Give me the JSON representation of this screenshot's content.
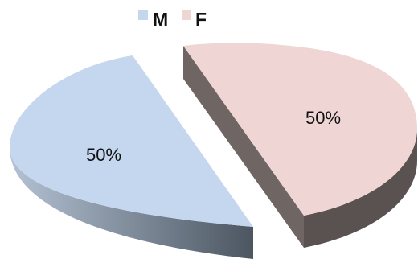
{
  "chart_data": {
    "type": "pie",
    "style": "3d-exploded",
    "legend_position": "top",
    "series": [
      {
        "name": "M",
        "value": 50,
        "label": "50%",
        "color": "#c5d7ee",
        "side_light": "#b3c2d4",
        "side_dark": "#4c5661"
      },
      {
        "name": "F",
        "value": 50,
        "label": "50%",
        "color": "#efd6d5",
        "side_light": "#6f6562",
        "side_dark": "#5a5250"
      }
    ]
  }
}
